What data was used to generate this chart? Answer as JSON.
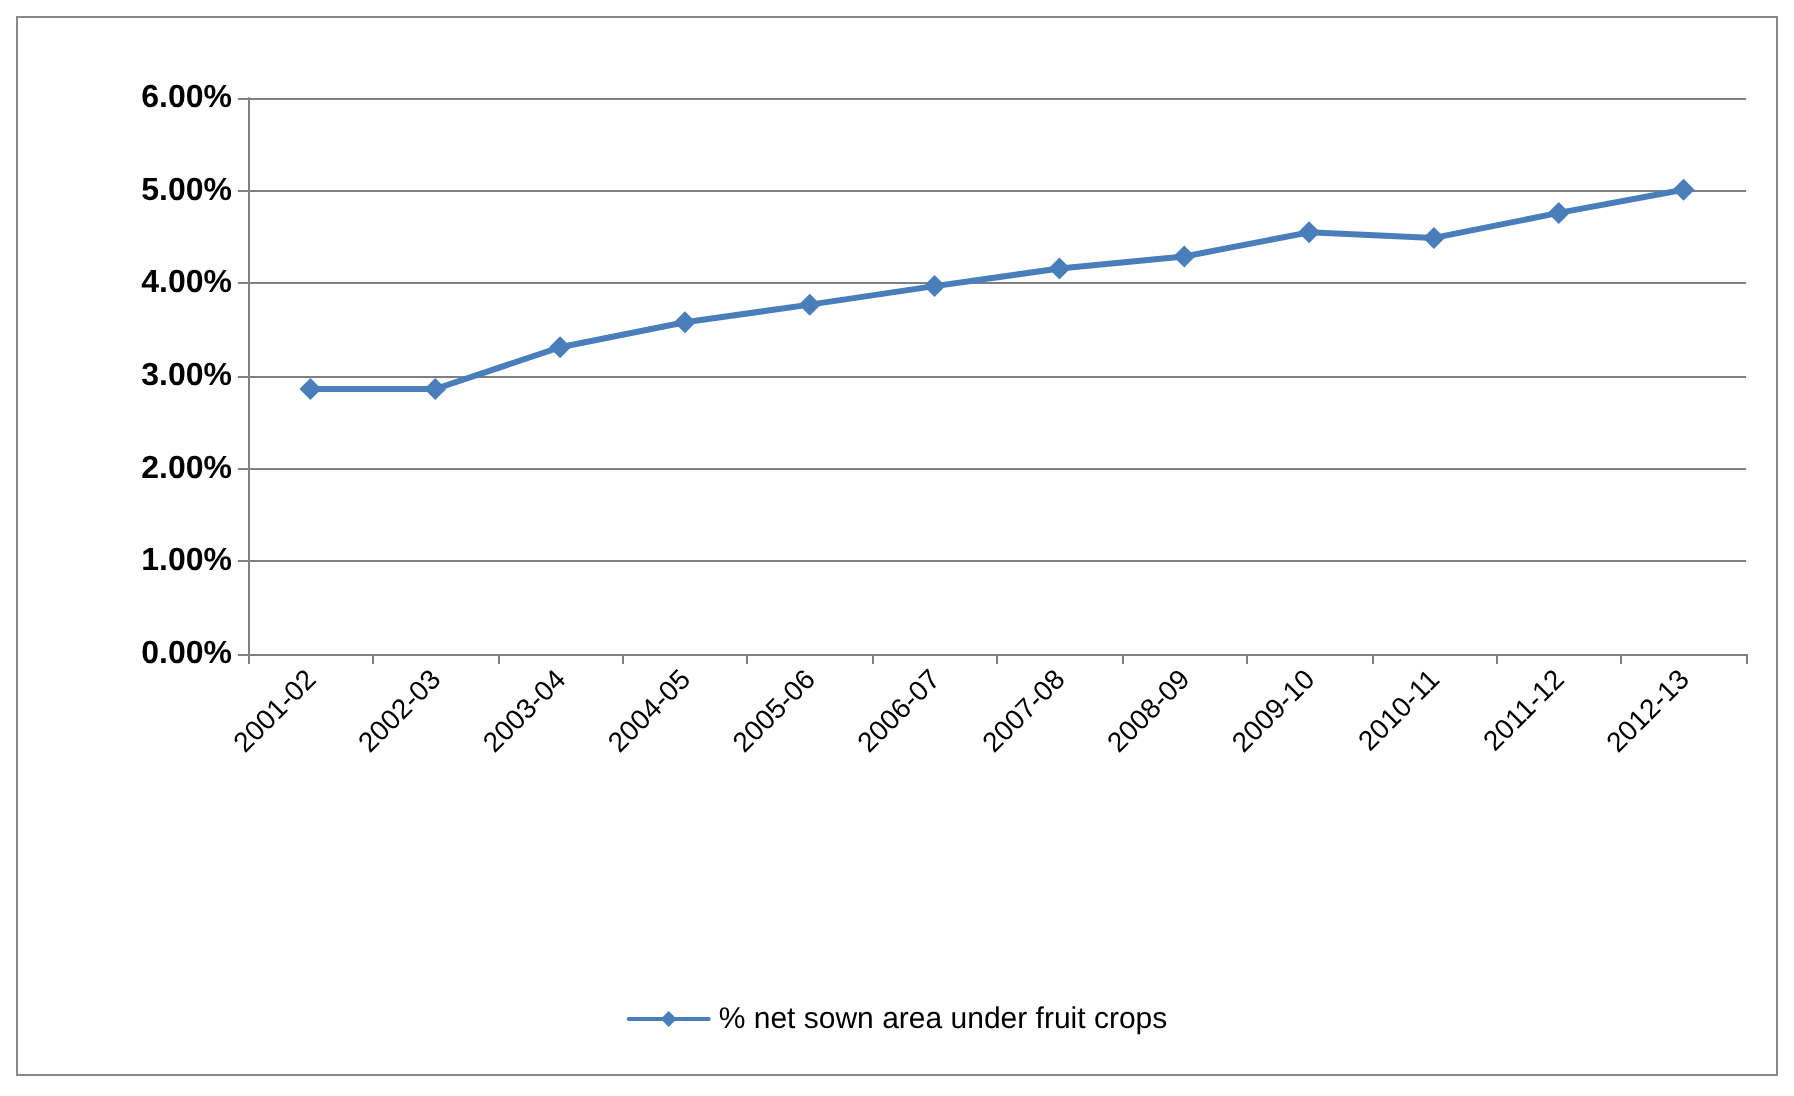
{
  "chart_data": {
    "type": "line",
    "categories": [
      "2001-02",
      "2002-03",
      "2003-04",
      "2004-05",
      "2005-06",
      "2006-07",
      "2007-08",
      "2008-09",
      "2009-10",
      "2010-11",
      "2011-12",
      "2012-13"
    ],
    "series": [
      {
        "name": "% net sown area under fruit crops",
        "color": "#4a7ebb",
        "values": [
          2.86,
          2.86,
          3.31,
          3.58,
          3.77,
          3.97,
          4.16,
          4.29,
          4.55,
          4.49,
          4.76,
          5.01
        ]
      }
    ],
    "ylim": [
      0,
      6
    ],
    "yticks": [
      {
        "value": 0,
        "label": "0.00%"
      },
      {
        "value": 1,
        "label": "1.00%"
      },
      {
        "value": 2,
        "label": "2.00%"
      },
      {
        "value": 3,
        "label": "3.00%"
      },
      {
        "value": 4,
        "label": "4.00%"
      },
      {
        "value": 5,
        "label": "5.00%"
      },
      {
        "value": 6,
        "label": "6.00%"
      }
    ],
    "grid": "y",
    "legend": "bottom",
    "marker": "diamond",
    "line_style": "solid"
  }
}
